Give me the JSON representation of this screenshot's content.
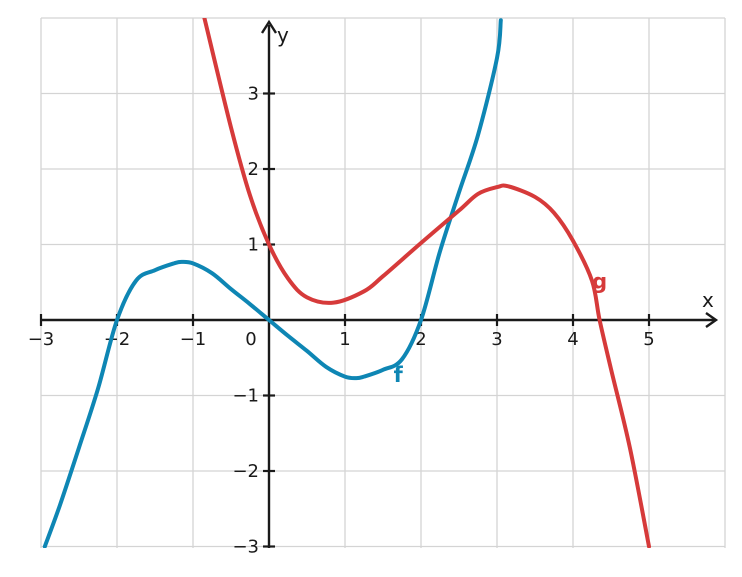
{
  "chart_data": {
    "type": "line",
    "title": "",
    "xlabel": "x",
    "ylabel": "y",
    "xlim": [
      -3,
      6
    ],
    "ylim": [
      -3,
      4
    ],
    "grid": true,
    "x_ticks": [
      -3,
      -2,
      -1,
      0,
      1,
      2,
      3,
      4,
      5
    ],
    "x_tick_labels": [
      "−3",
      "−2",
      "−1",
      "0",
      "1",
      "2",
      "3",
      "4",
      "5"
    ],
    "y_ticks": [
      -3,
      -2,
      -1,
      1,
      2,
      3
    ],
    "y_tick_labels": [
      "−3",
      "−2",
      "−1",
      "1",
      "2",
      "3"
    ],
    "series": [
      {
        "name": "f",
        "color": "#0e86b4",
        "x": [
          -2.95,
          -2.75,
          -2.5,
          -2.25,
          -2.0,
          -1.75,
          -1.5,
          -1.25,
          -1.15,
          -1.0,
          -0.75,
          -0.5,
          -0.25,
          0.0,
          0.25,
          0.5,
          0.75,
          1.0,
          1.15,
          1.25,
          1.5,
          1.75,
          2.0,
          2.25,
          2.5,
          2.75,
          3.0,
          3.05
        ],
        "values": [
          -3.0,
          -2.45,
          -1.69,
          -0.91,
          0.0,
          0.52,
          0.66,
          0.75,
          0.77,
          0.75,
          0.62,
          0.41,
          0.21,
          0.0,
          -0.21,
          -0.41,
          -0.62,
          -0.75,
          -0.77,
          -0.75,
          -0.66,
          -0.52,
          0.0,
          0.91,
          1.69,
          2.45,
          3.47,
          3.97
        ]
      },
      {
        "name": "g",
        "color": "#d63a3a",
        "x": [
          -0.85,
          -0.5,
          -0.25,
          0.0,
          0.25,
          0.5,
          0.85,
          1.25,
          1.5,
          2.0,
          2.5,
          2.75,
          3.0,
          3.15,
          3.5,
          3.75,
          4.0,
          4.25,
          4.35,
          4.5,
          4.75,
          5.0
        ],
        "values": [
          4.0,
          2.55,
          1.65,
          1.0,
          0.55,
          0.3,
          0.23,
          0.38,
          0.58,
          1.02,
          1.45,
          1.67,
          1.76,
          1.77,
          1.63,
          1.42,
          1.05,
          0.52,
          0.0,
          -0.65,
          -1.7,
          -3.0
        ]
      }
    ],
    "annotations": [
      {
        "text": "f",
        "x": 1.7,
        "y": -0.82,
        "color": "#0e86b4"
      },
      {
        "text": "g",
        "x": 4.35,
        "y": 0.42,
        "color": "#d63a3a"
      }
    ]
  }
}
